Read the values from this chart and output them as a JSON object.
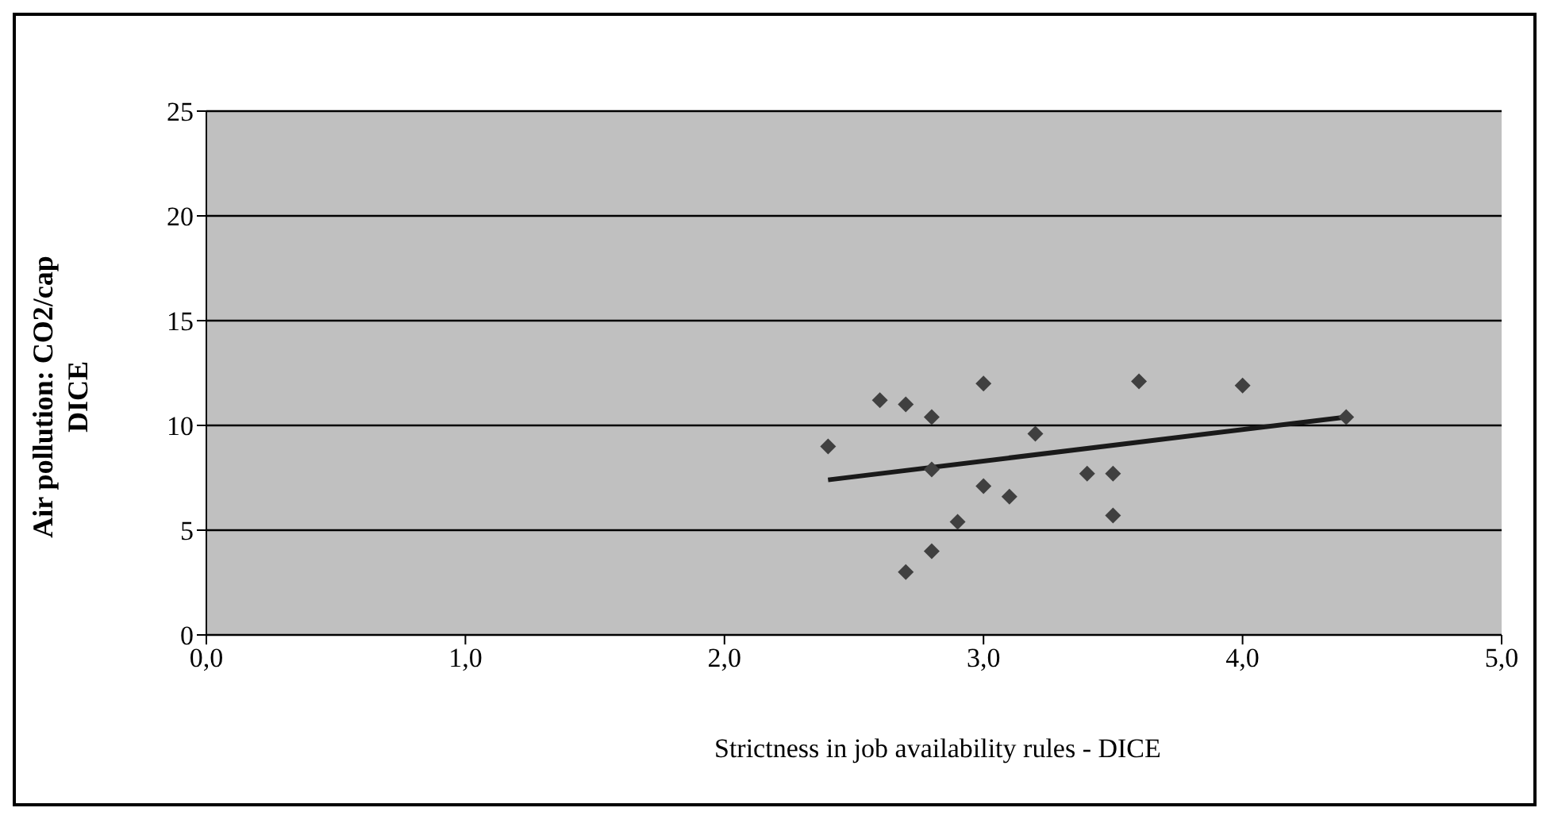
{
  "chart_data": {
    "type": "scatter",
    "xlabel": "Strictness in job availability rules - DICE",
    "ylabel": "Air pollution: CO2/cap\nDICE",
    "xlim": [
      0,
      5
    ],
    "xticks": [
      {
        "value": 0,
        "label": "0,0"
      },
      {
        "value": 1,
        "label": "1,0"
      },
      {
        "value": 2,
        "label": "2,0"
      },
      {
        "value": 3,
        "label": "3,0"
      },
      {
        "value": 4,
        "label": "4,0"
      },
      {
        "value": 5,
        "label": "5,0"
      }
    ],
    "ylim": [
      0,
      25
    ],
    "yticks": [
      0,
      5,
      10,
      15,
      20,
      25
    ],
    "grid": "y",
    "marker": "diamond",
    "series": [
      {
        "color": "#404040",
        "x": [
          2.4,
          2.6,
          2.7,
          2.8,
          3.0,
          3.2,
          2.8,
          3.0,
          3.1,
          2.9,
          2.8,
          2.7,
          3.4,
          3.5,
          3.5,
          3.6,
          4.0,
          4.4
        ],
        "values": [
          9.0,
          11.2,
          11.0,
          10.4,
          12.0,
          9.6,
          7.9,
          7.1,
          6.6,
          5.4,
          4.0,
          3.0,
          7.7,
          7.7,
          5.7,
          12.1,
          11.9,
          10.4
        ]
      },
      {
        "type": "line",
        "marker": "none",
        "color": "#1a1a1a",
        "x": [
          2.4,
          4.4
        ],
        "values": [
          7.4,
          10.4
        ]
      }
    ]
  }
}
